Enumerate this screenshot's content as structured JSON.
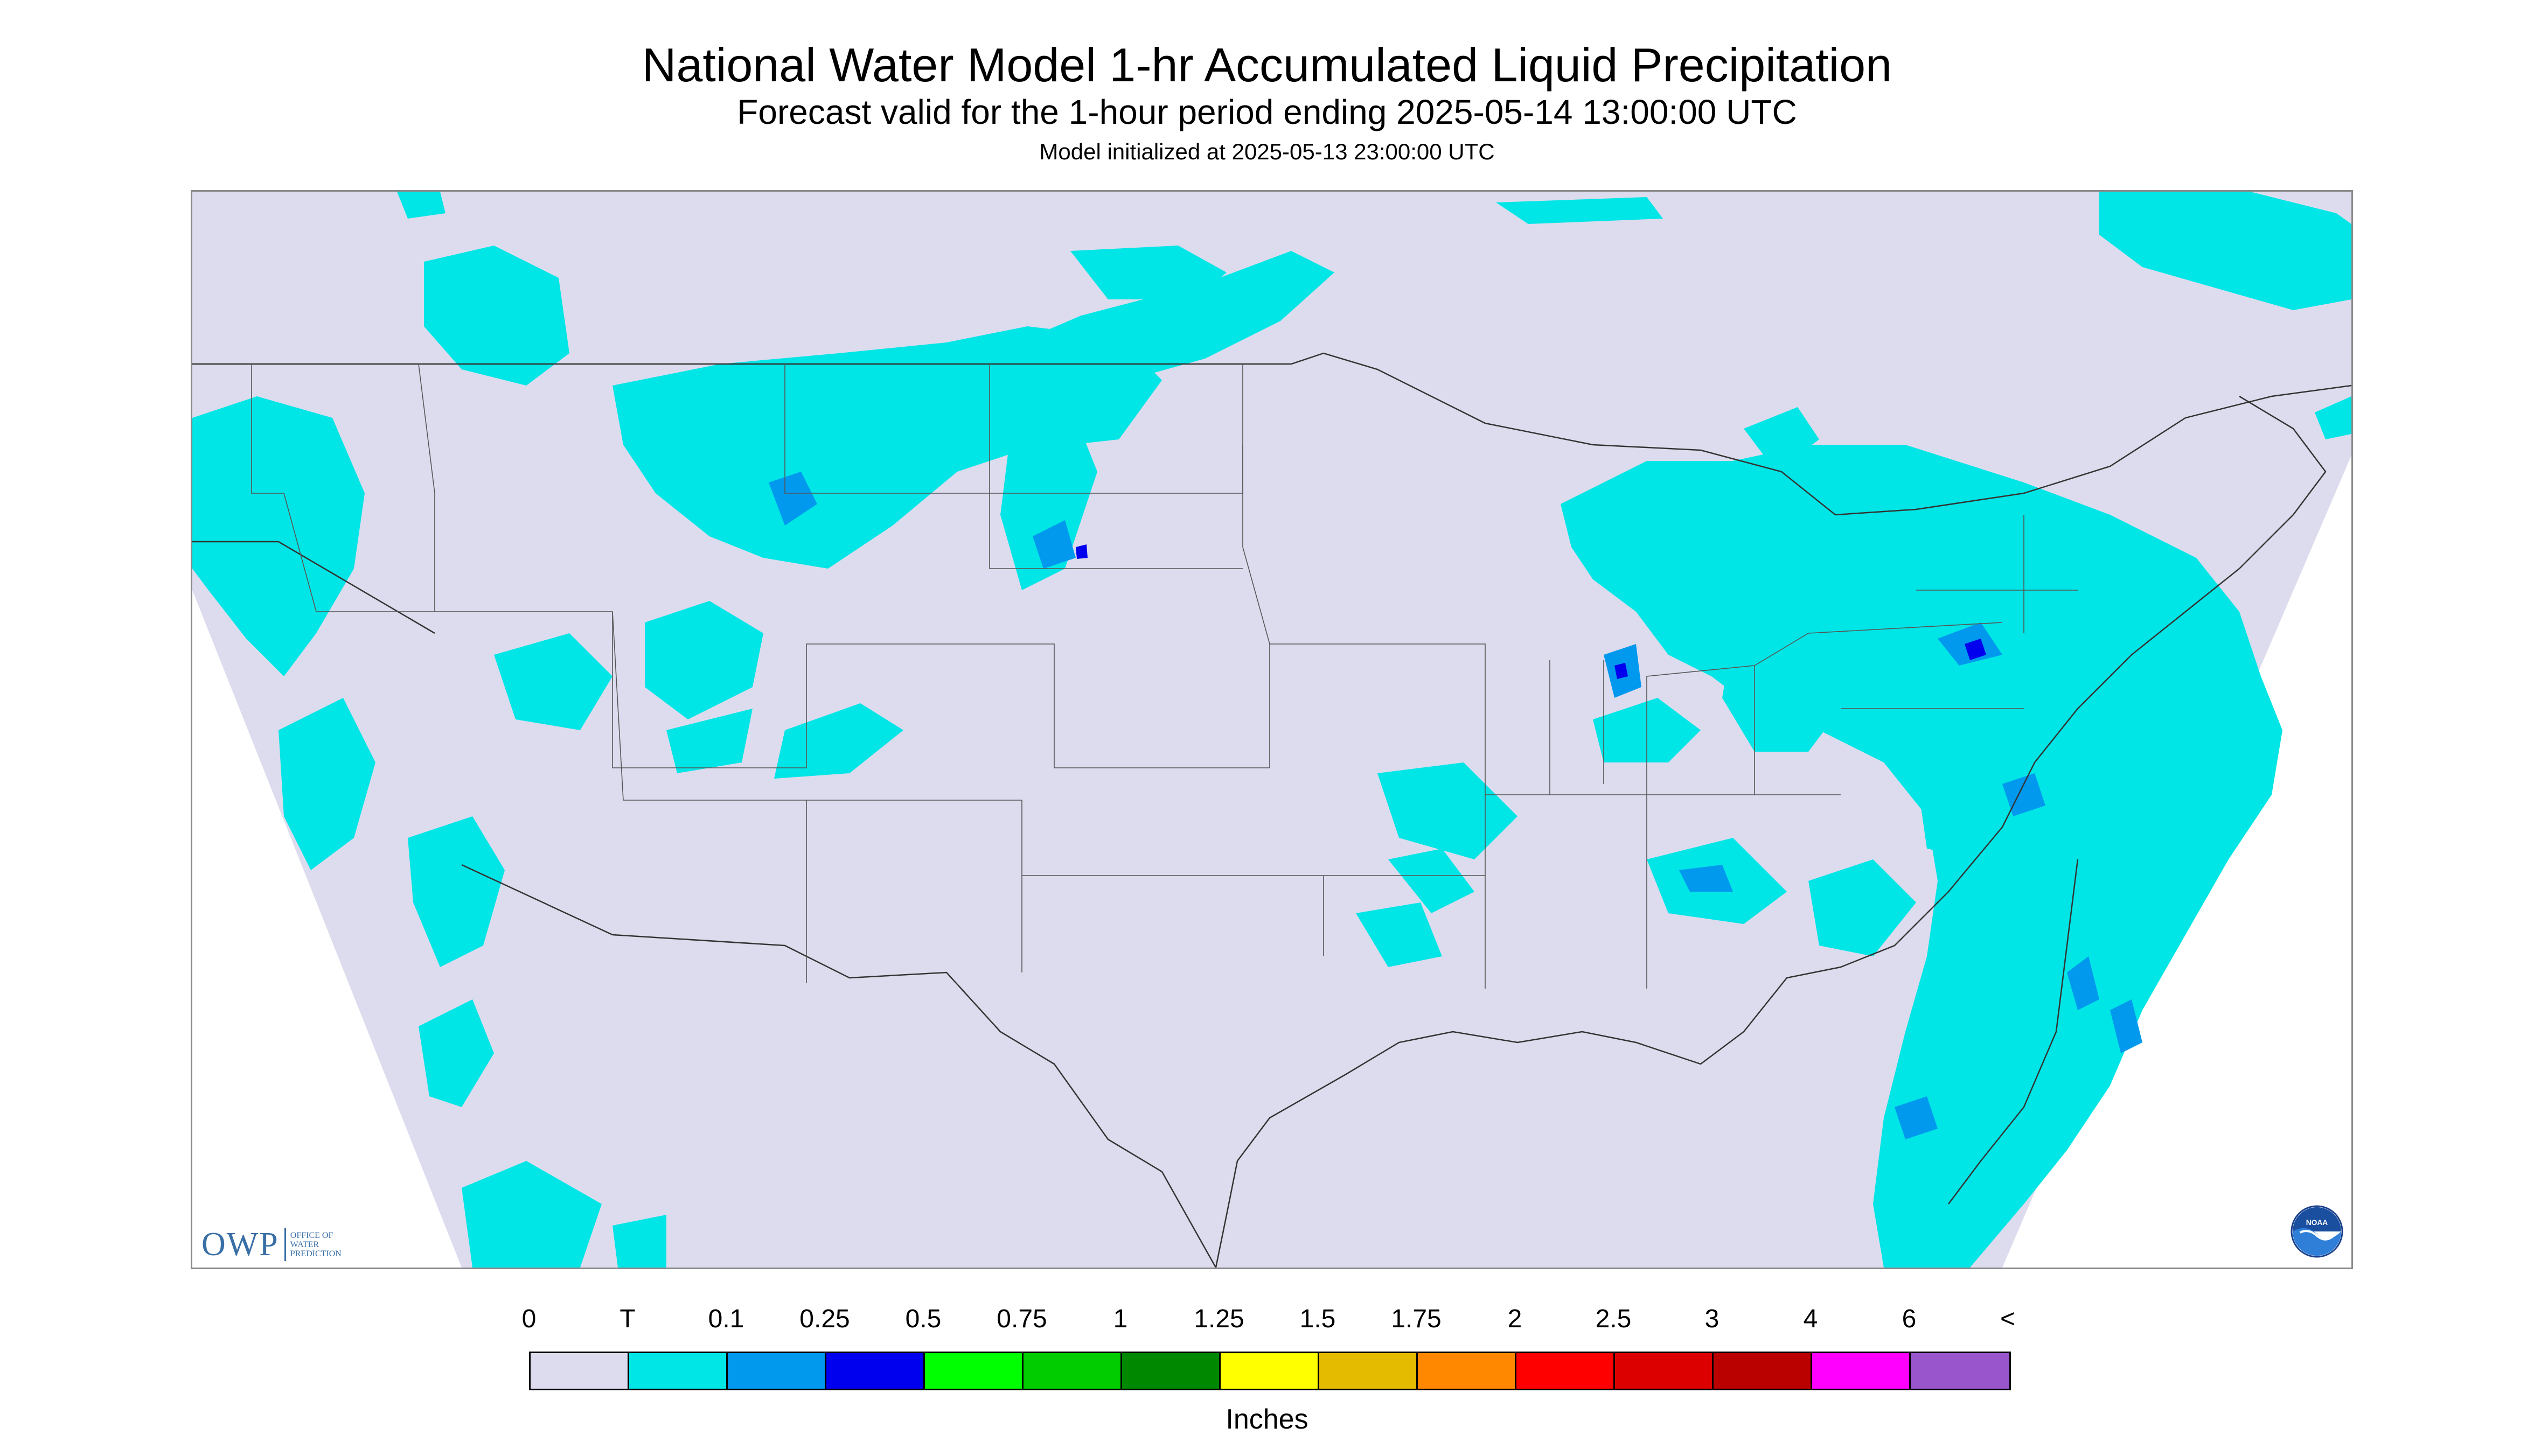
{
  "title": "National Water Model 1-hr Accumulated Liquid Precipitation",
  "subtitle": "Forecast valid for the 1-hour period ending 2025-05-14 13:00:00 UTC",
  "init_line": "Model initialized at 2025-05-13 23:00:00 UTC",
  "logos": {
    "owp_mark": "OWP",
    "owp_lines": [
      "OFFICE OF",
      "WATER",
      "PREDICTION"
    ],
    "noaa_text": "NOAA"
  },
  "legend": {
    "labels": [
      "0",
      "T",
      "0.1",
      "0.25",
      "0.5",
      "0.75",
      "1",
      "1.25",
      "1.5",
      "1.75",
      "2",
      "2.5",
      "3",
      "4",
      "6",
      "<"
    ],
    "colors": [
      "#dcdcee",
      "#00e5e5",
      "#0099ee",
      "#0000ee",
      "#00ff00",
      "#00cc00",
      "#008800",
      "#ffff00",
      "#e5bb00",
      "#ff8800",
      "#ff0000",
      "#dd0000",
      "#bb0000",
      "#ff00ff",
      "#9955cc"
    ],
    "units": "Inches"
  },
  "map": {
    "background_color": "#dcdcee",
    "outside_domain_color": "#ffffff",
    "light_precip_color": "#00e5e5",
    "moderate_precip_color": "#0099ee",
    "heavy_precip_color": "#0000ee"
  }
}
